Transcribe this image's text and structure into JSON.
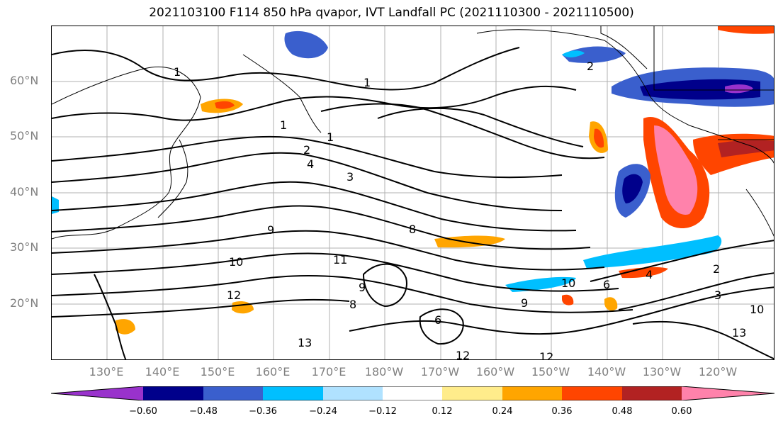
{
  "title": "2021103100 F114 850 hPa qvapor, IVT Landfall PC (2021110300 - 2021110500)",
  "map": {
    "lat_labels": [
      "60°N",
      "50°N",
      "40°N",
      "30°N",
      "20°N"
    ],
    "lon_labels": [
      "130°E",
      "140°E",
      "150°E",
      "160°E",
      "170°E",
      "180°W",
      "170°W",
      "160°W",
      "150°W",
      "140°W",
      "130°W",
      "120°W"
    ],
    "contour_labels": [
      "1",
      "1",
      "1",
      "1",
      "2",
      "2",
      "3",
      "4",
      "8",
      "9",
      "10",
      "11",
      "12",
      "12",
      "13",
      "13",
      "10",
      "6",
      "4",
      "2",
      "3",
      "10",
      "12",
      "8",
      "9",
      "9",
      "6"
    ]
  },
  "colorbar": {
    "ticks": [
      "−0.60",
      "−0.48",
      "−0.36",
      "−0.24",
      "−0.12",
      "0.12",
      "0.24",
      "0.36",
      "0.48",
      "0.60"
    ],
    "colors": [
      "#9932cc",
      "#00008b",
      "#3a5fcd",
      "#00bfff",
      "#b0e2ff",
      "#ffffff",
      "#ffec8b",
      "#ffa500",
      "#ff4500",
      "#b22222",
      "#ff82ab"
    ]
  }
}
